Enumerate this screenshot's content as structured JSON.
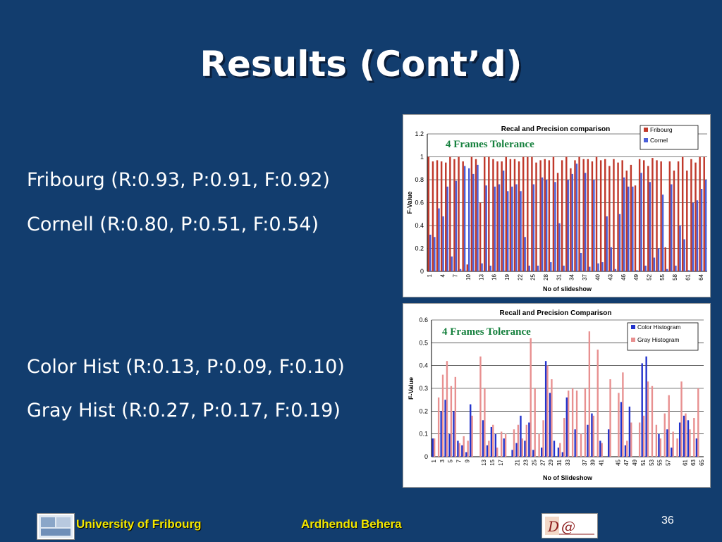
{
  "slide": {
    "title": "Results (Cont’d)",
    "lines": [
      "Fribourg (R:0.93, P:0.91, F:0.92)",
      "Cornell (R:0.80, P:0.51, F:0.54)",
      "Color Hist (R:0.13, P:0.09, F:0.10)",
      "Gray Hist (R:0.27, P:0.17, F:0.19)"
    ],
    "page_number": "36"
  },
  "footer": {
    "university": "University of Fribourg",
    "author": "Ardhendu Behera",
    "logo_text": "D@"
  },
  "chart_data": [
    {
      "type": "bar",
      "title": "Recal and Precision comparison",
      "annotation": "4 Frames Tolerance",
      "xlabel": "No of slideshow",
      "ylabel": "F-Value",
      "ylim": [
        0,
        1.2
      ],
      "yticks": [
        "0",
        "0.2",
        "0.4",
        "0.6",
        "0.8",
        "1",
        "1.2"
      ],
      "xticks": [
        "1",
        "4",
        "7",
        "10",
        "13",
        "16",
        "19",
        "22",
        "25",
        "28",
        "31",
        "34",
        "37",
        "40",
        "43",
        "46",
        "49",
        "52",
        "55",
        "58",
        "61",
        "64"
      ],
      "legend_position": "top-right",
      "colors": [
        "#c0392b",
        "#4a5fd8"
      ],
      "series": [
        {
          "name": "Fribourg",
          "values": [
            1,
            0.96,
            0.97,
            0.96,
            0.95,
            1,
            0.98,
            1,
            0.96,
            0.06,
            1,
            0.98,
            0.6,
            1,
            1,
            0.98,
            0.96,
            0.96,
            1,
            0.98,
            0.98,
            0.96,
            1,
            1,
            1,
            0.95,
            0.97,
            0.98,
            0.97,
            1,
            0.86,
            0.97,
            1,
            0.9,
            0.97,
            1,
            0.98,
            0.98,
            0.96,
            1,
            0.97,
            0.98,
            0.92,
            0.98,
            0.95,
            0.97,
            0.88,
            0.93,
            0.75,
            0.98,
            0.97,
            0.92,
            0.99,
            0.97,
            0.96,
            0.21,
            0.96,
            0.88,
            0.96,
            1,
            0.88,
            0.98,
            0.95,
            1,
            1
          ]
        },
        {
          "name": "Cornel",
          "values": [
            0.32,
            0.3,
            0.55,
            0.48,
            0.74,
            0.13,
            0.79,
            0.02,
            0.92,
            0.9,
            0.85,
            0.93,
            0.07,
            0.75,
            0.05,
            0.74,
            0.76,
            0.88,
            0.7,
            0.74,
            0.76,
            0.7,
            0.3,
            0.05,
            0.76,
            0.05,
            0.82,
            0.8,
            0.08,
            0.78,
            0.42,
            0.05,
            0.8,
            0.85,
            0.94,
            0.16,
            0.86,
            0.04,
            0.8,
            0.07,
            0.08,
            0.48,
            0.21,
            0.02,
            0.5,
            0.82,
            0.74,
            0.74,
            0.01,
            0.86,
            0.05,
            0.78,
            0.12,
            0.2,
            0.67,
            0.02,
            0.76,
            0.05,
            0.4,
            0.28,
            0.01,
            0.6,
            0.62,
            0.72,
            0.8
          ]
        }
      ]
    },
    {
      "type": "bar",
      "title": "Recall and Precision Comparison",
      "annotation": "4 Frames Tolerance",
      "xlabel": "No of Slideshow",
      "ylabel": "F-Value",
      "ylim": [
        0,
        0.6
      ],
      "yticks": [
        "0",
        "0.1",
        "0.2",
        "0.3",
        "0.4",
        "0.5",
        "0.6"
      ],
      "xticks": [
        "1",
        "3",
        "5",
        "7",
        "9",
        "13",
        "15",
        "17",
        "21",
        "23",
        "25",
        "27",
        "29",
        "31",
        "33",
        "37",
        "39",
        "41",
        "45",
        "47",
        "49",
        "51",
        "53",
        "55",
        "57",
        "61",
        "63",
        "65"
      ],
      "legend_position": "top-right",
      "colors": [
        "#2233cc",
        "#e89090"
      ],
      "series": [
        {
          "name": "Color Histogram",
          "values": [
            0.08,
            0,
            0.2,
            0.25,
            0.1,
            0.2,
            0.07,
            0.05,
            0.02,
            0.23,
            0,
            0,
            0.16,
            0.05,
            0.13,
            0.1,
            0,
            0.08,
            0,
            0.03,
            0.06,
            0.18,
            0.07,
            0.15,
            0.03,
            0,
            0.04,
            0.42,
            0.28,
            0.07,
            0.04,
            0.02,
            0.26,
            0,
            0.12,
            0,
            0,
            0.14,
            0.19,
            0,
            0.07,
            0,
            0.12,
            0,
            0,
            0.24,
            0.05,
            0.22,
            0,
            0,
            0.41,
            0.44,
            0,
            0,
            0.1,
            0,
            0.12,
            0.04,
            0,
            0.15,
            0.18,
            0.16,
            0,
            0.08,
            0
          ]
        },
        {
          "name": "Gray Histogram",
          "values": [
            0.08,
            0.26,
            0.36,
            0.42,
            0.31,
            0.35,
            0.06,
            0.09,
            0.07,
            0.18,
            0,
            0.44,
            0.3,
            0.07,
            0.14,
            0.04,
            0.11,
            0.1,
            0,
            0.12,
            0.14,
            0.08,
            0.14,
            0.52,
            0.3,
            0.1,
            0.16,
            0.4,
            0.34,
            0,
            0.06,
            0.17,
            0.29,
            0.3,
            0.29,
            0.1,
            0.3,
            0.55,
            0.18,
            0.47,
            0.06,
            0,
            0.34,
            0,
            0.28,
            0.37,
            0.07,
            0.15,
            0,
            0.15,
            0.18,
            0.33,
            0.31,
            0.14,
            0.08,
            0.19,
            0.27,
            0.11,
            0.08,
            0.33,
            0.19,
            0.12,
            0.17,
            0.3,
            0
          ]
        }
      ]
    }
  ]
}
